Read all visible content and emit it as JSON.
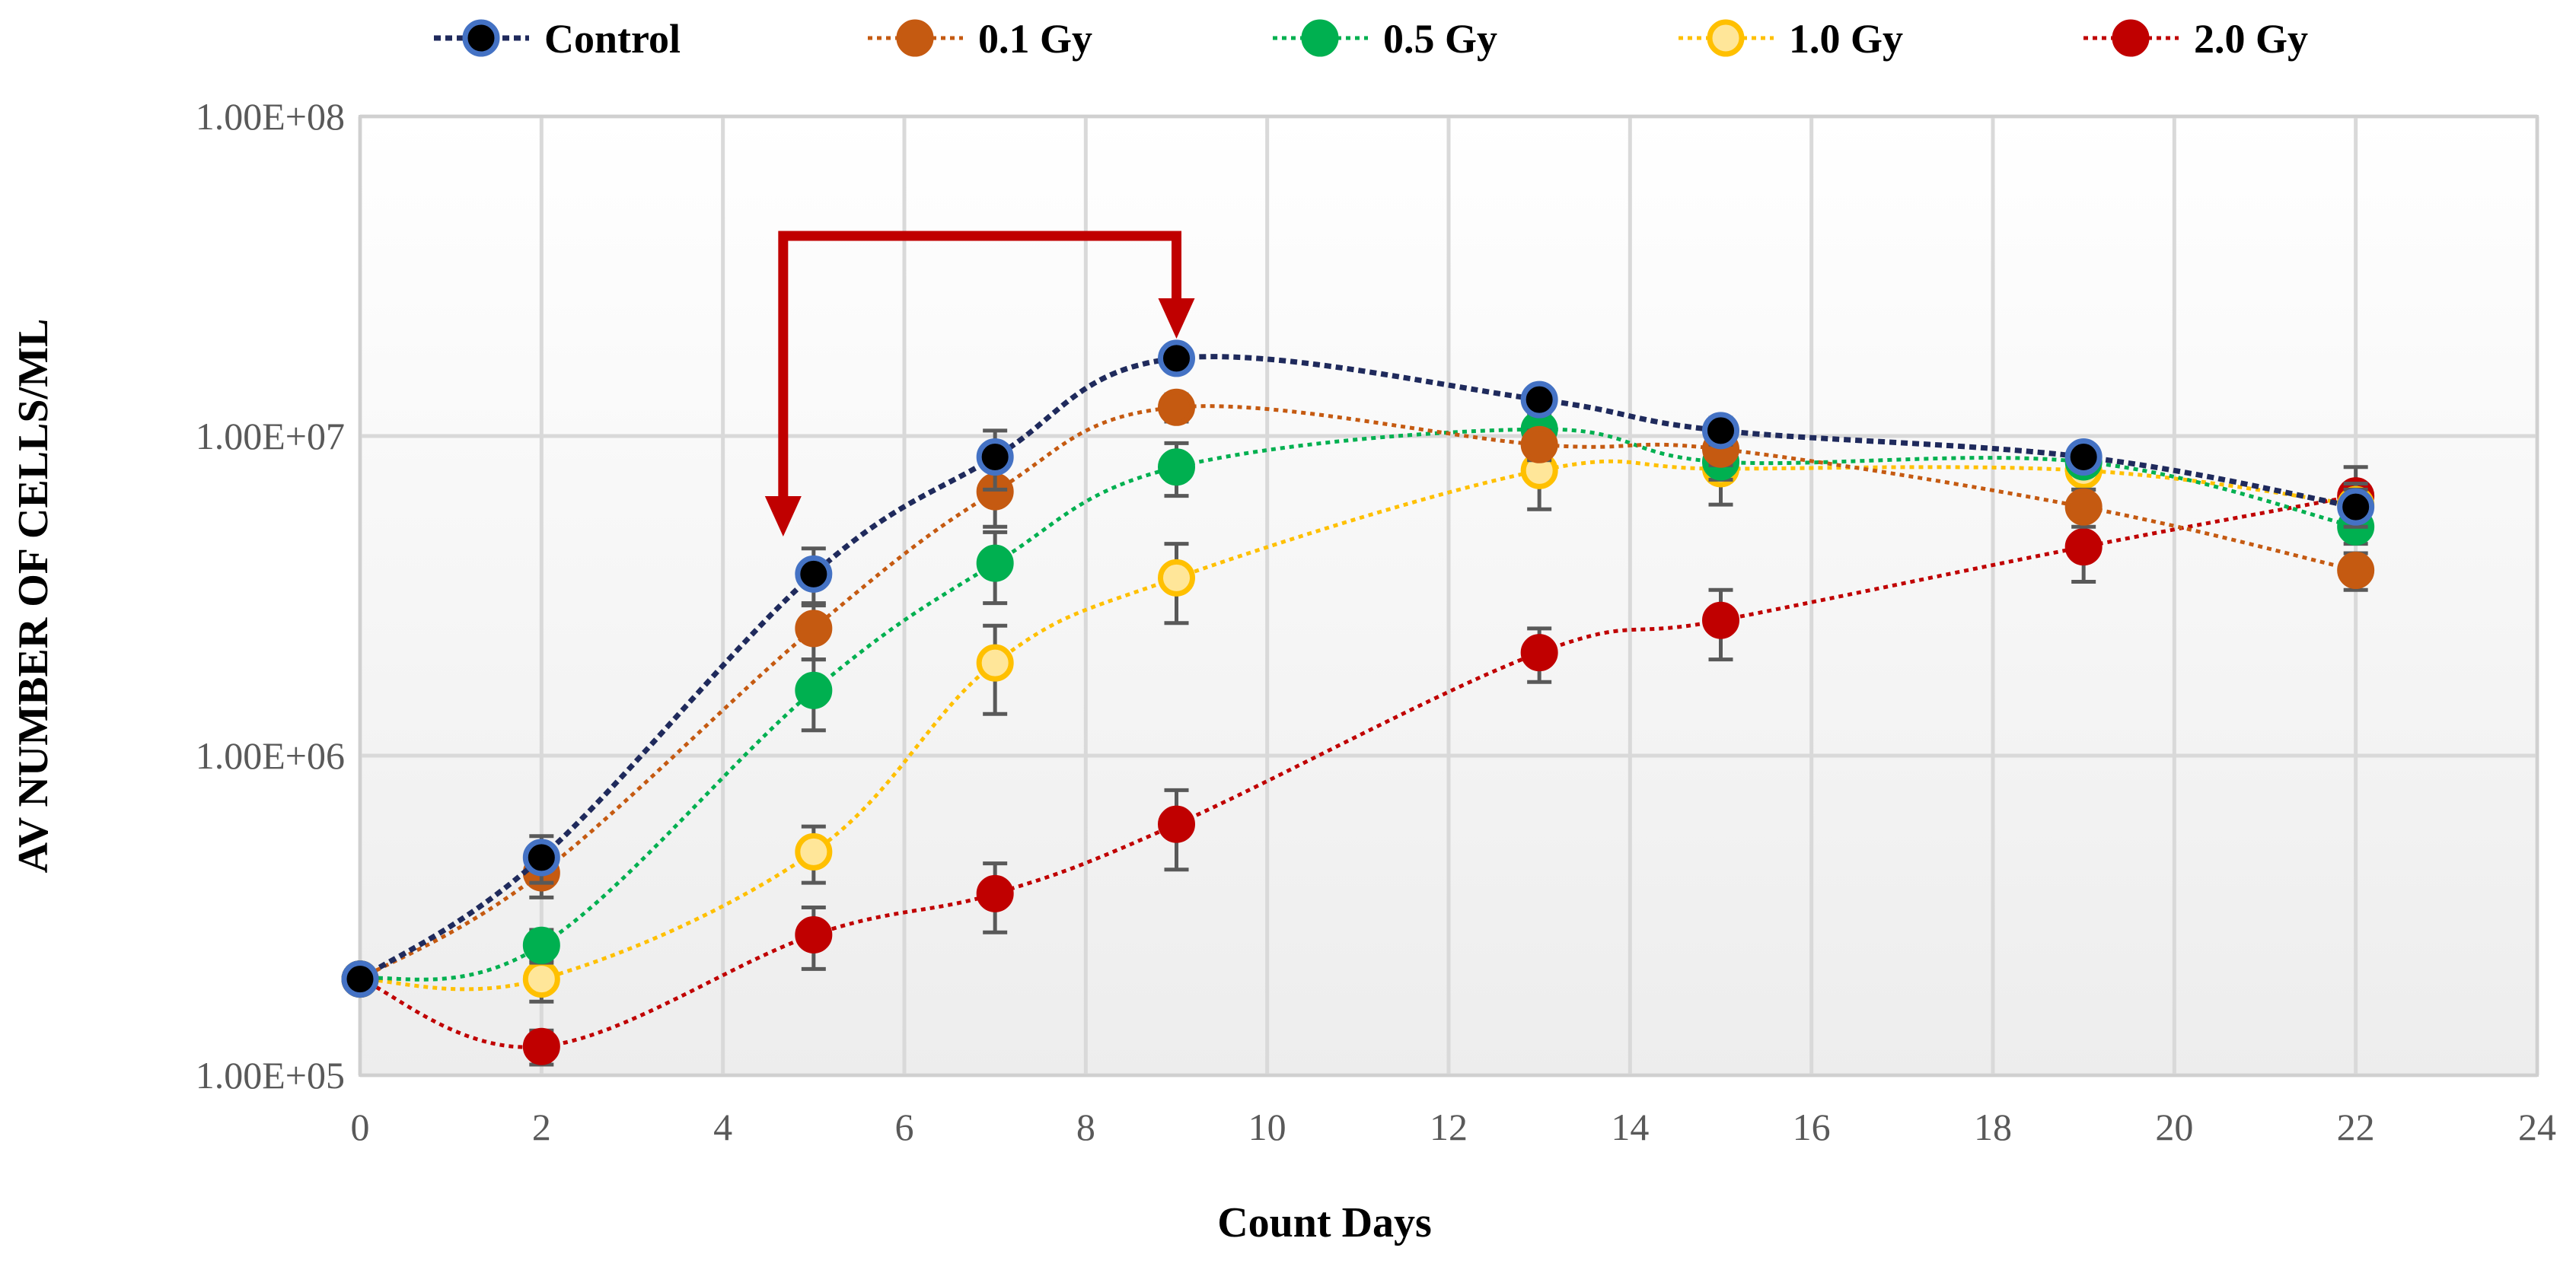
{
  "chart_data": {
    "type": "line",
    "title": "",
    "xlabel": "Count Days",
    "ylabel": "AV NUMBER OF CELLS/ML",
    "xlim": [
      0,
      24
    ],
    "ylim": [
      100000,
      100000000
    ],
    "yscale": "log",
    "grid": true,
    "legend_position": "top",
    "x_ticks": [
      "0",
      "2",
      "4",
      "6",
      "8",
      "10",
      "12",
      "14",
      "16",
      "18",
      "20",
      "22",
      "24"
    ],
    "y_ticks": [
      "1.00E+05",
      "1.00E+06",
      "1.00E+07",
      "1.00E+08"
    ],
    "x": [
      0,
      2,
      5,
      7,
      9,
      13,
      15,
      19,
      22
    ],
    "series": [
      {
        "name": "Control",
        "color": "#1f2a5c",
        "marker_fill": "#000000",
        "marker_edge": "#4472c4",
        "values": [
          200000,
          480000,
          3700000,
          8600000,
          17500000,
          13000000,
          10400000,
          8600000,
          6000000
        ],
        "errors": [
          0,
          80000,
          750000,
          1800000,
          1000000,
          1000000,
          1000000,
          600000,
          800000
        ]
      },
      {
        "name": "0.1 Gy",
        "color": "#c55a11",
        "marker_fill": "#c55a11",
        "marker_edge": "#c55a11",
        "values": [
          200000,
          430000,
          2500000,
          6700000,
          12300000,
          9400000,
          9100000,
          6000000,
          3800000
        ],
        "errors": [
          0,
          70000,
          500000,
          1500000,
          1200000,
          1000000,
          1000000,
          800000,
          500000
        ]
      },
      {
        "name": "0.5 Gy",
        "color": "#00b050",
        "marker_fill": "#00b050",
        "marker_edge": "#00b050",
        "values": [
          200000,
          255000,
          1600000,
          4000000,
          8000000,
          10500000,
          8300000,
          8300000,
          5200000
        ],
        "errors": [
          0,
          30000,
          400000,
          1000000,
          1500000,
          1300000,
          1000000,
          700000,
          600000
        ]
      },
      {
        "name": "1.0 Gy",
        "color": "#ffc000",
        "marker_fill": "#ffe699",
        "marker_edge": "#ffc000",
        "values": [
          200000,
          200000,
          500000,
          1950000,
          3600000,
          7800000,
          7900000,
          7800000,
          6100000
        ],
        "errors": [
          0,
          30000,
          100000,
          600000,
          1000000,
          1900000,
          1800000,
          1000000,
          1000000
        ]
      },
      {
        "name": "2.0 Gy",
        "color": "#c00000",
        "marker_fill": "#c00000",
        "marker_edge": "#c00000",
        "values": [
          200000,
          123000,
          275000,
          370000,
          610000,
          2100000,
          2650000,
          4500000,
          6500000
        ],
        "errors": [
          0,
          15000,
          60000,
          90000,
          170000,
          400000,
          650000,
          1000000,
          1500000
        ]
      }
    ],
    "annotations": [
      {
        "type": "bracket-arrow",
        "from_x": 5,
        "to_x": 9,
        "color": "#c00000"
      }
    ]
  }
}
